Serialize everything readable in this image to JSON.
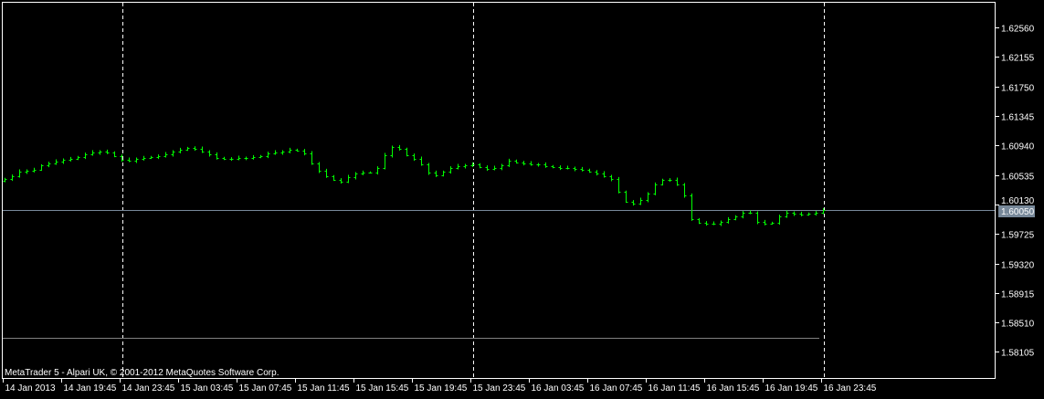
{
  "window": {
    "watermark": "MetaTrader 5 - Alpari UK, © 2001-2012 MetaQuotes Software Corp."
  },
  "chart_data": {
    "type": "bar",
    "style": "OHLC bars",
    "grid": false,
    "colors": {
      "background": "#000000",
      "bars": "#00ff00",
      "axis": "#ffffff",
      "bid_line": "#778899",
      "level_line": "#808080"
    },
    "y_ticks": [
      "1.62560",
      "1.62155",
      "1.61750",
      "1.61345",
      "1.60940",
      "1.60535",
      "1.60130",
      "1.59725",
      "1.59320",
      "1.58915",
      "1.58510",
      "1.58105"
    ],
    "ylim": [
      1.579,
      1.628
    ],
    "x_ticks": [
      "14 Jan 2013",
      "14 Jan 19:45",
      "14 Jan 23:45",
      "15 Jan 03:45",
      "15 Jan 07:45",
      "15 Jan 11:45",
      "15 Jan 15:45",
      "15 Jan 19:45",
      "15 Jan 23:45",
      "16 Jan 03:45",
      "16 Jan 07:45",
      "16 Jan 11:45",
      "16 Jan 15:45",
      "16 Jan 19:45",
      "16 Jan 23:45"
    ],
    "x_start": "14 Jan 2013 15:45",
    "x_end": "16 Jan 23:45",
    "current_price": "1.60050",
    "horizontal_level": 1.583,
    "day_separators": [
      "15 Jan 00:00",
      "16 Jan 00:00",
      "17 Jan 00:00"
    ],
    "close": [
      1.60481,
      1.60519,
      1.60581,
      1.60594,
      1.60607,
      1.60669,
      1.60694,
      1.60719,
      1.60744,
      1.60757,
      1.60782,
      1.6082,
      1.60845,
      1.60857,
      1.60845,
      1.60795,
      1.60744,
      1.60732,
      1.60757,
      1.6077,
      1.60782,
      1.60795,
      1.6082,
      1.60857,
      1.60882,
      1.60907,
      1.60895,
      1.60857,
      1.6082,
      1.6077,
      1.60757,
      1.60757,
      1.6077,
      1.6077,
      1.60782,
      1.60795,
      1.60832,
      1.60845,
      1.60857,
      1.60882,
      1.6087,
      1.60832,
      1.60694,
      1.60594,
      1.60519,
      1.60469,
      1.60444,
      1.60506,
      1.60556,
      1.60569,
      1.60569,
      1.60632,
      1.60807,
      1.6092,
      1.60895,
      1.60807,
      1.60757,
      1.60682,
      1.60569,
      1.60531,
      1.60581,
      1.60632,
      1.60657,
      1.60669,
      1.60682,
      1.60644,
      1.60619,
      1.60632,
      1.60669,
      1.60732,
      1.60707,
      1.60694,
      1.60682,
      1.60682,
      1.60657,
      1.60644,
      1.60632,
      1.60632,
      1.60619,
      1.60607,
      1.60581,
      1.60556,
      1.60519,
      1.60481,
      1.60306,
      1.60168,
      1.60143,
      1.60193,
      1.6028,
      1.60406,
      1.60469,
      1.60469,
      1.60406,
      1.60255,
      1.59929,
      1.59879,
      1.59867,
      1.59867,
      1.59892,
      1.59929,
      1.59967,
      1.60017,
      1.60017,
      1.59892,
      1.59867,
      1.59879,
      1.59967,
      1.60017,
      1.60005,
      1.59992,
      1.60005,
      1.60017,
      1.6005
    ]
  }
}
